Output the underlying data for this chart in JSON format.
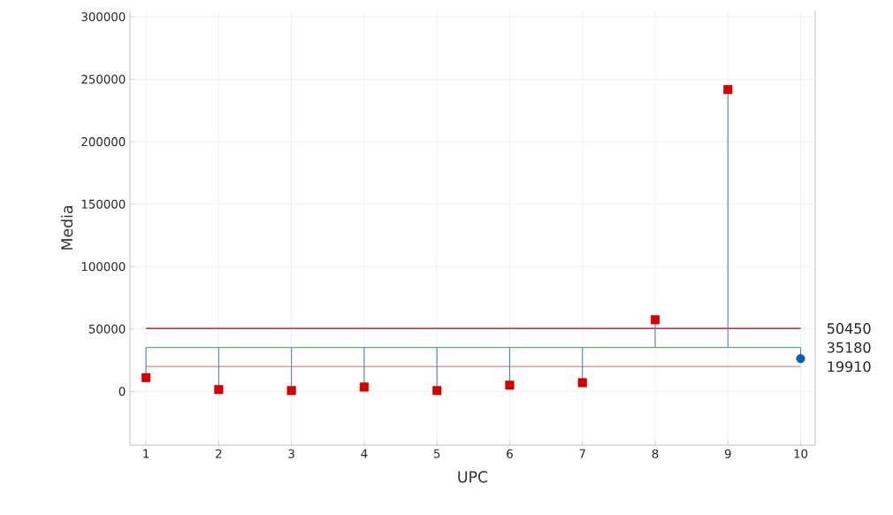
{
  "chart_data": {
    "type": "scatter",
    "xlabel": "UPC",
    "ylabel": "Media",
    "xlim": [
      0.78,
      10.2
    ],
    "xticks": [
      1,
      2,
      3,
      4,
      5,
      6,
      7,
      8,
      9,
      10
    ],
    "ylim": [
      -43000,
      305000
    ],
    "yticks": [
      0,
      50000,
      100000,
      150000,
      200000,
      250000,
      300000
    ],
    "grid": true,
    "line_style": "solid",
    "series": [
      {
        "color": "#d40000",
        "marker": "square",
        "x": [
          1,
          2,
          3,
          4,
          5,
          6,
          7,
          8,
          9
        ],
        "values": [
          11000,
          1500,
          700,
          3500,
          700,
          5000,
          7000,
          57400,
          241800
        ],
        "errors": [
          [
            11000,
            35180
          ],
          [
            1500,
            35180
          ],
          [
            700,
            35180
          ],
          [
            3500,
            35180
          ],
          [
            700,
            35180
          ],
          [
            5000,
            35180
          ],
          [
            7000,
            35180
          ],
          [
            35180,
            57400
          ],
          [
            35180,
            241800
          ]
        ]
      },
      {
        "color": "#0a5cb0",
        "marker": "circle",
        "x": [
          10
        ],
        "values": [
          26200
        ],
        "errors": [
          [
            26200,
            35180
          ]
        ]
      }
    ],
    "ref_lines": [
      {
        "axis": "y",
        "value": 50450,
        "label": "50450",
        "color": "#b00000"
      },
      {
        "axis": "y",
        "value": 35180,
        "label": "35180",
        "color": "#5cb070"
      },
      {
        "axis": "y",
        "value": 19910,
        "label": "19910",
        "color": "#d8a0a0"
      }
    ]
  }
}
